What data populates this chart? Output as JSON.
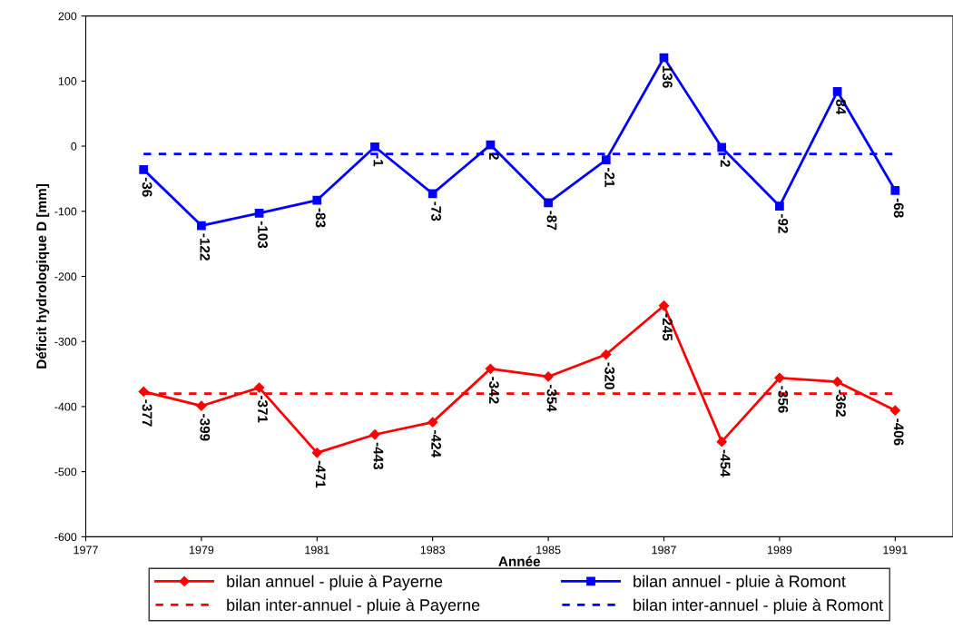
{
  "chart_data": {
    "type": "line",
    "xlabel": "Année",
    "ylabel": "Déficit hydrologique D [mm]",
    "x": [
      1978,
      1979,
      1980,
      1981,
      1982,
      1983,
      1984,
      1985,
      1986,
      1987,
      1988,
      1989,
      1990,
      1991
    ],
    "xlim": [
      1977,
      1992
    ],
    "xticks": [
      1977,
      1979,
      1981,
      1983,
      1985,
      1987,
      1989,
      1991
    ],
    "ylim": [
      -600,
      200
    ],
    "yticks": [
      -600,
      -500,
      -400,
      -300,
      -200,
      -100,
      0,
      100,
      200
    ],
    "grid": false,
    "legend": "bottom",
    "series": [
      {
        "name": "bilan annuel - pluie à Payerne",
        "color": "#ff0000",
        "marker": "diamond",
        "line_style": "solid",
        "values": [
          -377,
          -399,
          -371,
          -471,
          -443,
          -424,
          -342,
          -354,
          -320,
          -245,
          -454,
          -356,
          -362,
          -406
        ],
        "value_labels": [
          "-377",
          "-399",
          "-371",
          "-471",
          "-443",
          "-424",
          "-342",
          "-354",
          "-320",
          "-245",
          "-454",
          "-356",
          "-362",
          "-406"
        ]
      },
      {
        "name": "bilan annuel - pluie à Romont",
        "color": "#0000ff",
        "marker": "square",
        "line_style": "solid",
        "values": [
          -36,
          -122,
          -103,
          -83,
          -1,
          -73,
          2,
          -87,
          -21,
          136,
          -2,
          -92,
          84,
          -68
        ],
        "value_labels": [
          "-36",
          "-122",
          "-103",
          "-83",
          "-1",
          "-73",
          "2",
          "-87",
          "-21",
          "136",
          "-2",
          "-92",
          "84",
          "-68"
        ]
      }
    ],
    "ref_lines": [
      {
        "axis": "y",
        "value": -380,
        "label": "bilan inter-annuel - pluie à Payerne",
        "color": "#ff0000",
        "line_style": "dashed"
      },
      {
        "axis": "y",
        "value": -12,
        "label": "bilan inter-annuel - pluie à Romont",
        "color": "#0000ff",
        "line_style": "dashed"
      }
    ]
  }
}
